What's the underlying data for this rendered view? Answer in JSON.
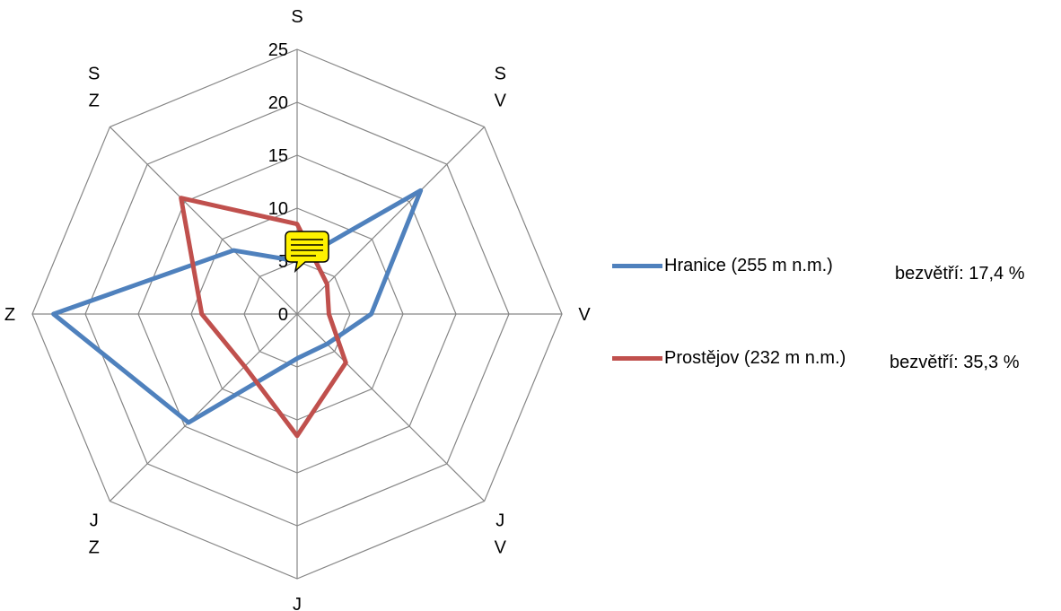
{
  "chart_data": {
    "type": "radar",
    "categories": [
      "S",
      "SV",
      "V",
      "JV",
      "J",
      "JZ",
      "Z",
      "SZ"
    ],
    "category_labels": [
      [
        "S"
      ],
      [
        "S",
        "V"
      ],
      [
        "V"
      ],
      [
        "J",
        "V"
      ],
      [
        "J"
      ],
      [
        "J",
        "Z"
      ],
      [
        "Z"
      ],
      [
        "S",
        "Z"
      ]
    ],
    "rlim": [
      0,
      25
    ],
    "ticks": [
      "0",
      "5",
      "10",
      "15",
      "20",
      "25"
    ],
    "series": [
      {
        "name": "Hranice (255 m n.m.)",
        "color": "#4F81BD",
        "values": [
          5,
          16.5,
          7,
          4,
          4.2,
          14.5,
          23,
          8.5
        ],
        "calm": "bezvětří: 17,4 %"
      },
      {
        "name": "Prostějov (232 m n.m.)",
        "color": "#C0504D",
        "values": [
          8.5,
          4,
          3,
          6.5,
          11.5,
          7,
          9,
          15.5
        ],
        "calm": "bezvětří: 35,3 %"
      }
    ],
    "grid": true,
    "legend_position": "right"
  },
  "comment_icon": "speech-bubble-icon"
}
